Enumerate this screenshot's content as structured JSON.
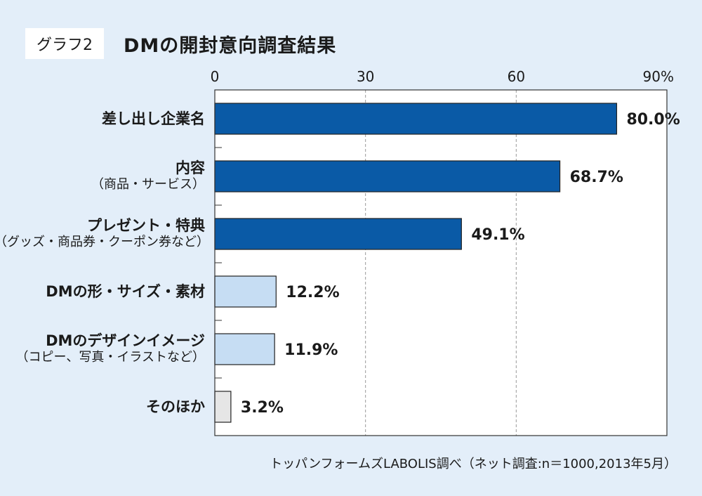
{
  "header": {
    "badge": "グラフ2",
    "title": "DMの開封意向調査結果"
  },
  "chart_data": {
    "type": "bar",
    "orientation": "horizontal",
    "xlim": [
      0,
      90
    ],
    "ticks": [
      "0",
      "30",
      "60",
      "90%"
    ],
    "tick_values": [
      0,
      30,
      60,
      90
    ],
    "grid": true,
    "categories": [
      {
        "label": "差し出し企業名",
        "sublabel": ""
      },
      {
        "label": "内容",
        "sublabel": "（商品・サービス）"
      },
      {
        "label": "プレゼント・特典",
        "sublabel": "（グッズ・商品券・クーポン券など）"
      },
      {
        "label": "DMの形・サイズ・素材",
        "sublabel": ""
      },
      {
        "label": "DMのデザインイメージ",
        "sublabel": "（コピー、写真・イラストなど）"
      },
      {
        "label": "そのほか",
        "sublabel": ""
      }
    ],
    "values": [
      80.0,
      68.7,
      49.1,
      12.2,
      11.9,
      3.2
    ],
    "value_labels": [
      "80.0%",
      "68.7%",
      "49.1%",
      "12.2%",
      "11.9%",
      "3.2%"
    ],
    "bar_colors": [
      "#0a5aa6",
      "#0a5aa6",
      "#0a5aa6",
      "#c6ddf3",
      "#c6ddf3",
      "#e6e6e6"
    ],
    "source": "トッパンフォームズLABOLIS調べ（ネット調査:n＝1000,2013年5月）"
  }
}
